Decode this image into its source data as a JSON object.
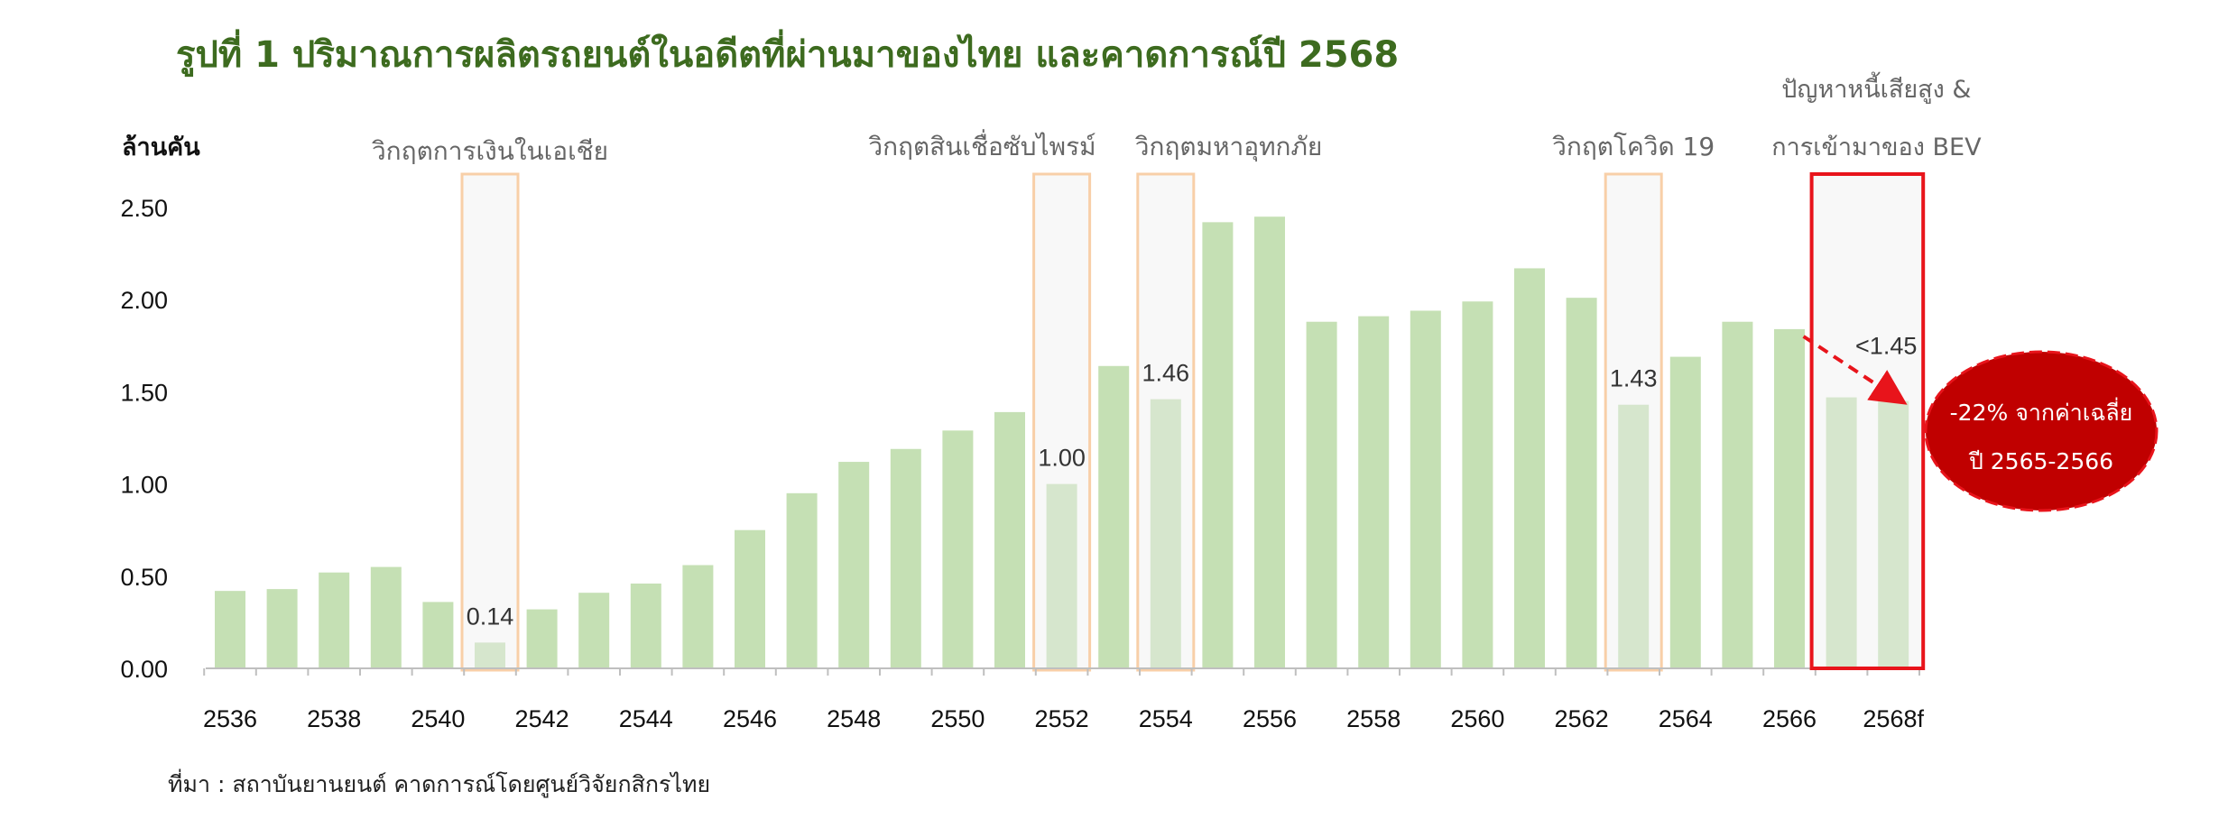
{
  "title": "รูปที่ 1 ปริมาณการผลิตรถยนต์ในอดีตที่ผ่านมาของไทย และคาดการณ์ปี 2568",
  "source": "ที่มา : สถาบันยานยนต์ คาดการณ์โดยศูนย์วิจัยกสิกรไทย",
  "colors": {
    "title": "#3d6b1f",
    "bar": "#c5e0b4",
    "bar_crisis": "#d6e6cd",
    "highlight_box": "#e8141b",
    "crisis_box": "#f8cfa8",
    "callout": "#c00000",
    "arrow": "#e8141b"
  },
  "chart_data": {
    "type": "bar",
    "ylabel": "ล้านคัน",
    "ylim": [
      0,
      2.5
    ],
    "yticks": [
      "0.00",
      "0.50",
      "1.00",
      "1.50",
      "2.00",
      "2.50"
    ],
    "categories": [
      "2536",
      "2537",
      "2538",
      "2539",
      "2540",
      "2541",
      "2542",
      "2543",
      "2544",
      "2545",
      "2546",
      "2547",
      "2548",
      "2549",
      "2550",
      "2551",
      "2552",
      "2553",
      "2554",
      "2555",
      "2556",
      "2557",
      "2558",
      "2559",
      "2560",
      "2561",
      "2562",
      "2563",
      "2564",
      "2565",
      "2566",
      "2567",
      "2568f"
    ],
    "xtick_labels": [
      "2536",
      "2538",
      "2540",
      "2542",
      "2544",
      "2546",
      "2548",
      "2550",
      "2552",
      "2554",
      "2556",
      "2558",
      "2560",
      "2562",
      "2564",
      "2566",
      "2568f"
    ],
    "values": [
      0.42,
      0.43,
      0.52,
      0.55,
      0.36,
      0.14,
      0.32,
      0.41,
      0.46,
      0.56,
      0.75,
      0.95,
      1.12,
      1.19,
      1.29,
      1.39,
      1.0,
      1.64,
      1.46,
      2.42,
      2.45,
      1.88,
      1.91,
      1.94,
      1.99,
      2.17,
      2.01,
      1.43,
      1.69,
      1.88,
      1.84,
      1.47,
      1.45
    ],
    "data_labels": [
      {
        "category": "2541",
        "text": "0.14"
      },
      {
        "category": "2552",
        "text": "1.00"
      },
      {
        "category": "2554",
        "text": "1.46"
      },
      {
        "category": "2563",
        "text": "1.43"
      },
      {
        "category": "2568f",
        "text": "<1.45"
      }
    ],
    "crisis_periods": [
      {
        "label": "วิกฤตการเงินในเอเชีย",
        "categories": [
          "2541"
        ]
      },
      {
        "label": "วิกฤตสินเชื่อซับไพรม์",
        "categories": [
          "2552"
        ]
      },
      {
        "label": "วิกฤตมหาอุทกภัย",
        "categories": [
          "2554"
        ]
      },
      {
        "label": "วิกฤตโควิด 19",
        "categories": [
          "2563"
        ]
      }
    ],
    "highlight": {
      "label_line1": "ปัญหาหนี้เสียสูง &",
      "label_line2": "การเข้ามาของ BEV",
      "categories": [
        "2567",
        "2568f"
      ]
    },
    "callout": {
      "line1": "-22% จากค่าเฉลี่ย",
      "line2": "ปี 2565-2566"
    }
  }
}
